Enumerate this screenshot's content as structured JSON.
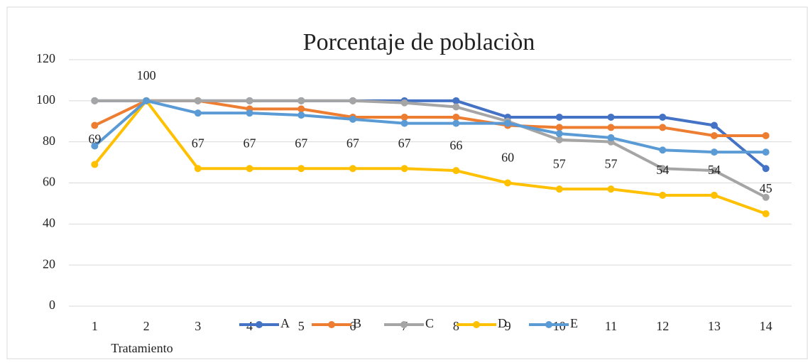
{
  "chart_data": {
    "type": "line",
    "title": "Porcentaje de poblaciòn",
    "x_label": "Tratamiento",
    "categories": [
      "1",
      "2",
      "3",
      "4",
      "5",
      "6",
      "7",
      "8",
      "9",
      "10",
      "11",
      "12",
      "13",
      "14"
    ],
    "ylim": [
      0,
      120
    ],
    "yticks": [
      0,
      20,
      40,
      60,
      80,
      100,
      120
    ],
    "grid": true,
    "legend": "bottom",
    "series": [
      {
        "name": "A",
        "color": "#4472c4",
        "values": [
          100,
          100,
          100,
          100,
          100,
          100,
          100,
          100,
          92,
          92,
          92,
          92,
          88,
          67
        ]
      },
      {
        "name": "B",
        "color": "#ed7d31",
        "values": [
          88,
          100,
          100,
          96,
          96,
          92,
          92,
          92,
          88,
          87,
          87,
          87,
          83,
          83
        ]
      },
      {
        "name": "C",
        "color": "#a5a5a5",
        "values": [
          100,
          100,
          100,
          100,
          100,
          100,
          99,
          97,
          90,
          81,
          80,
          67,
          66,
          53
        ]
      },
      {
        "name": "D",
        "color": "#ffc000",
        "labels": true,
        "values": [
          69,
          100,
          67,
          67,
          67,
          67,
          67,
          66,
          60,
          57,
          57,
          54,
          54,
          45
        ]
      },
      {
        "name": "E",
        "color": "#5b9bd5",
        "values": [
          78,
          100,
          94,
          94,
          93,
          91,
          89,
          89,
          89,
          84,
          82,
          76,
          75,
          75
        ]
      }
    ]
  }
}
